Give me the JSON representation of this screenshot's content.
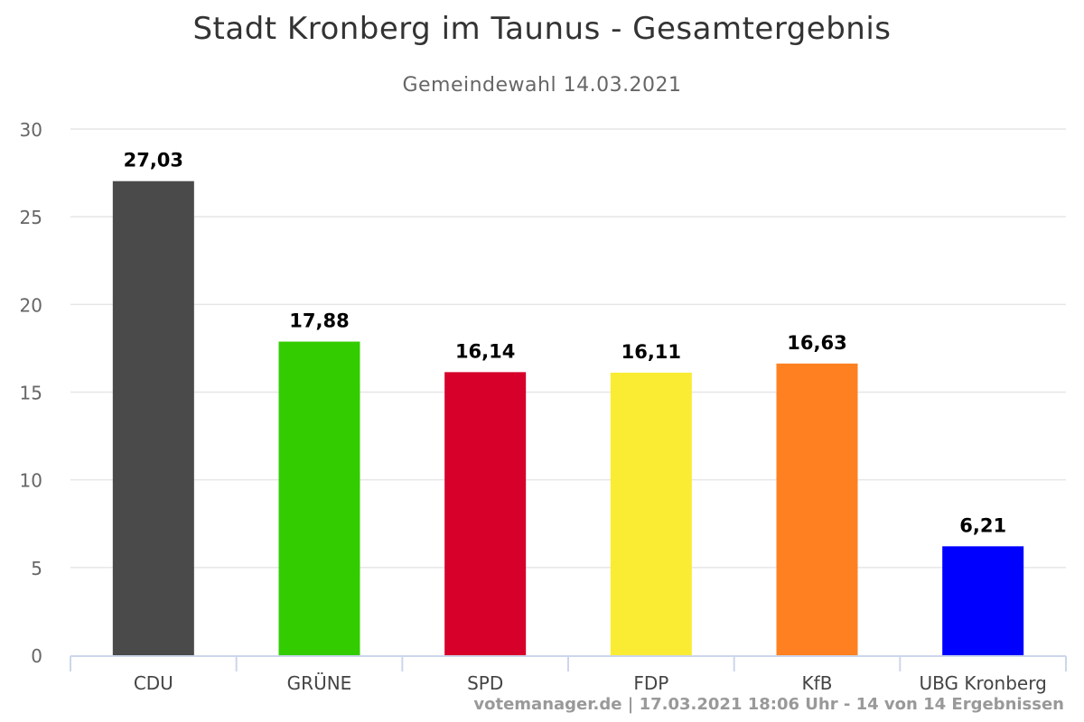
{
  "chart_data": {
    "type": "bar",
    "title": "Stadt Kronberg im Taunus - Gesamtergebnis",
    "subtitle": "Gemeindewahl 14.03.2021",
    "categories": [
      "CDU",
      "GRÜNE",
      "SPD",
      "FDP",
      "KfB",
      "UBG Kronberg"
    ],
    "values": [
      27.03,
      17.88,
      16.14,
      16.11,
      16.63,
      6.21
    ],
    "value_labels": [
      "27,03",
      "17,88",
      "16,14",
      "16,11",
      "16,63",
      "6,21"
    ],
    "colors": [
      "#4a4a4a",
      "#33cc00",
      "#d6002a",
      "#f9ec33",
      "#ff8020",
      "#0000ff"
    ],
    "ylim": [
      0,
      30
    ],
    "yticks": [
      0,
      5,
      10,
      15,
      20,
      25,
      30
    ],
    "grid": true,
    "legend": "none",
    "xlabel": "",
    "ylabel": ""
  },
  "credits": "votemanager.de | 17.03.2021 18:06 Uhr - 14 von 14 Ergebnissen"
}
